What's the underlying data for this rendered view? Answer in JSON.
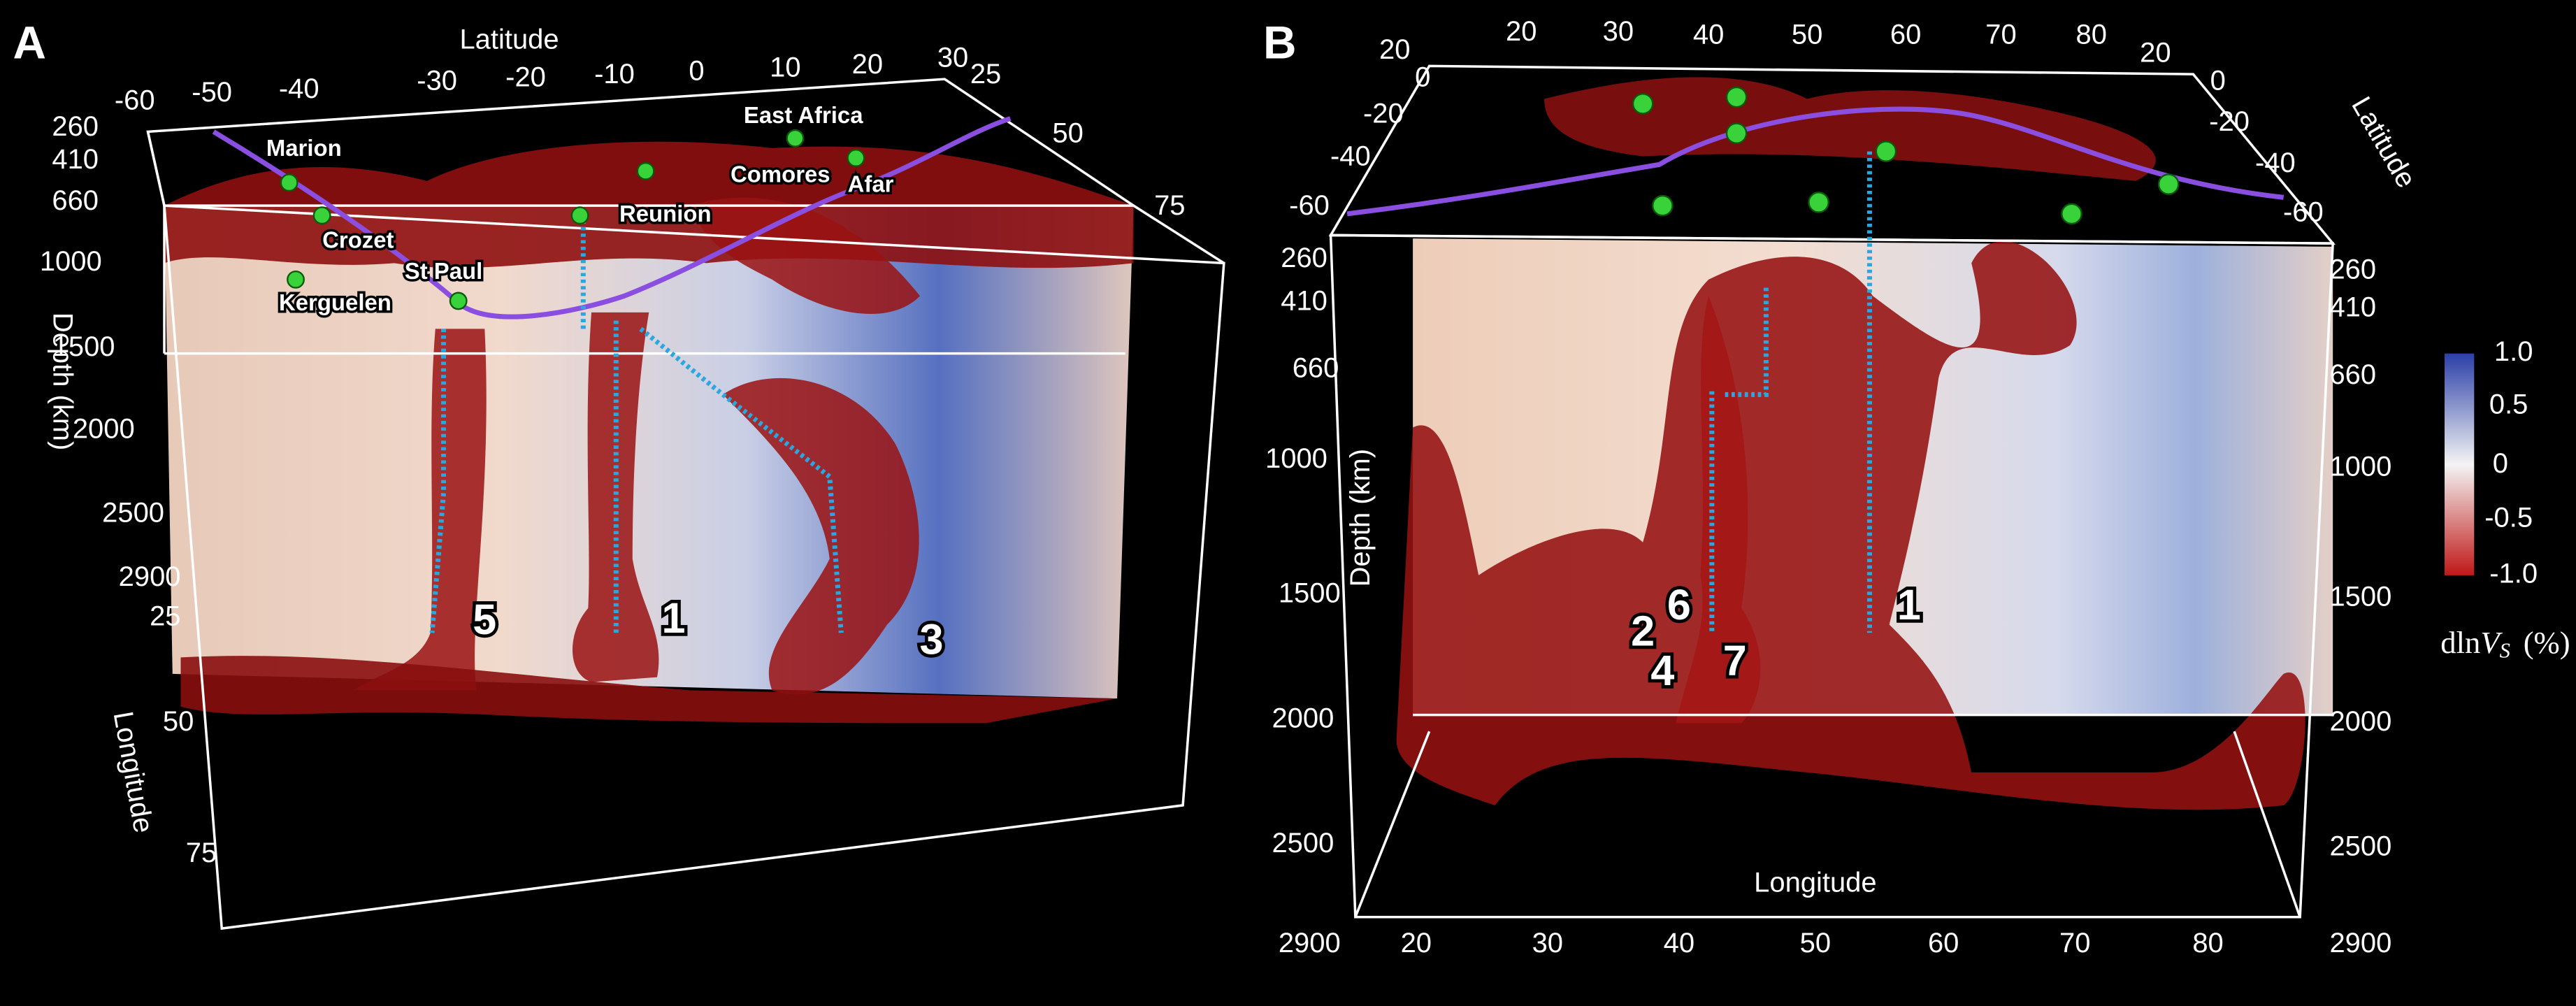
{
  "panel_a": {
    "letter": "A",
    "latitude_label": "Latitude",
    "latitude_ticks": [
      "-60",
      "-50",
      "-40",
      "-30",
      "-20",
      "-10",
      "0",
      "10",
      "20",
      "30"
    ],
    "longitude_ticks_top": [
      "25",
      "50",
      "75"
    ],
    "depth_ticks": [
      "260",
      "410",
      "660",
      "1000",
      "1500",
      "2000",
      "2500",
      "2900"
    ],
    "longitude_ticks_side": [
      "25",
      "50",
      "75"
    ],
    "depth_label": "Depth (km)",
    "longitude_label": "Longitude",
    "hotspots": [
      "Marion",
      "Crozet",
      "Kerguelen",
      "St Paul",
      "Reunion",
      "Comores",
      "East Africa",
      "Afar"
    ],
    "plume_numbers": [
      "5",
      "1",
      "3"
    ]
  },
  "panel_b": {
    "letter": "B",
    "longitude_ticks_top": [
      "20",
      "20",
      "30",
      "40",
      "50",
      "60",
      "70",
      "80",
      "20"
    ],
    "latitude_ticks_left": [
      "0",
      "-20",
      "-40",
      "-60"
    ],
    "latitude_ticks_right": [
      "0",
      "-20",
      "-40",
      "-60"
    ],
    "latitude_label": "Latitude",
    "depth_ticks_left": [
      "260",
      "410",
      "660",
      "1000",
      "1500",
      "2000",
      "2500",
      "2900"
    ],
    "depth_ticks_right": [
      "260",
      "410",
      "660",
      "1000",
      "1500",
      "2000",
      "2500",
      "2900"
    ],
    "depth_label": "Depth  (km)",
    "longitude_ticks_bottom": [
      "20",
      "30",
      "40",
      "50",
      "60",
      "70",
      "80"
    ],
    "longitude_label": "Longitude",
    "plume_numbers": [
      "6",
      "2",
      "4",
      "7",
      "1"
    ]
  },
  "colorbar": {
    "ticks": [
      "1.0",
      "0.5",
      "0",
      "-0.5",
      "-1.0"
    ],
    "label_prefix": "dln",
    "label_var": "V",
    "label_sub": "S",
    "label_unit": "(%)"
  }
}
